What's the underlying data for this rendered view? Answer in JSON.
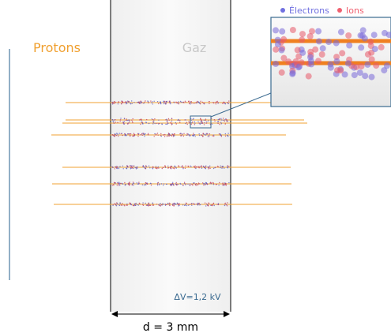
{
  "labels": {
    "protons": "Protons",
    "gas": "Gaz",
    "voltage": "ΔV=1,2 kV",
    "distance": "d = 3 mm"
  },
  "legend": {
    "electrons": "Électrons",
    "ions": "Ions"
  }
}
